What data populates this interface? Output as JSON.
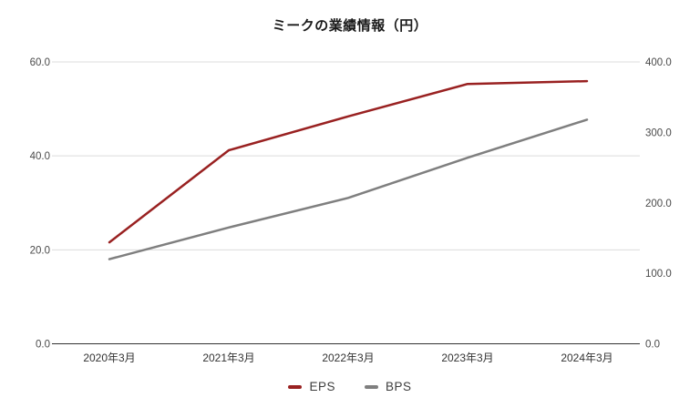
{
  "page": {
    "background": "#ffffff"
  },
  "chart_data": {
    "type": "line",
    "title": "ミークの業績情報（円）",
    "categories": [
      "2020年3月",
      "2021年3月",
      "2022年3月",
      "2023年3月",
      "2024年3月"
    ],
    "series": [
      {
        "name": "EPS",
        "axis": "left",
        "color": "#992121",
        "values": [
          21.6,
          41.2,
          48.4,
          55.3,
          55.9
        ]
      },
      {
        "name": "BPS",
        "axis": "right",
        "color": "#7f7f7f",
        "values": [
          120,
          165,
          207,
          264,
          318
        ]
      }
    ],
    "left_axis": {
      "min": 0,
      "max": 60,
      "ticks": [
        {
          "label": "0.0",
          "value": 0
        },
        {
          "label": "20.0",
          "value": 20
        },
        {
          "label": "40.0",
          "value": 40
        },
        {
          "label": "60.0",
          "value": 60
        }
      ]
    },
    "right_axis": {
      "min": 0,
      "max": 400,
      "ticks": [
        {
          "label": "0.0",
          "value": 0
        },
        {
          "label": "100.0",
          "value": 100
        },
        {
          "label": "200.0",
          "value": 200
        },
        {
          "label": "300.0",
          "value": 300
        },
        {
          "label": "400.0",
          "value": 400
        }
      ]
    },
    "grid": true,
    "legend_position": "bottom",
    "colors": {
      "gridline": "#dcdcdc",
      "axis_line": "#333333",
      "tick_label": "#4a4a4a",
      "title": "#1a1a1a",
      "legend_label": "#3d3d3d"
    }
  }
}
